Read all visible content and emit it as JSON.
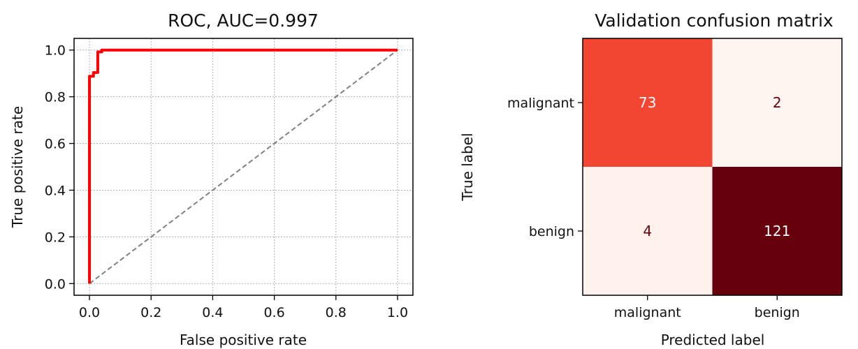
{
  "chart_data": [
    {
      "type": "line",
      "title": "ROC, AUC=0.997",
      "xlabel": "False positive rate",
      "ylabel": "True positive rate",
      "xlim": [
        -0.05,
        1.05
      ],
      "ylim": [
        -0.05,
        1.05
      ],
      "xticks": [
        "0.0",
        "0.2",
        "0.4",
        "0.6",
        "0.8",
        "1.0"
      ],
      "yticks": [
        "0.0",
        "0.2",
        "0.4",
        "0.6",
        "0.8",
        "1.0"
      ],
      "grid": true,
      "series": [
        {
          "x": [
            0.0,
            0.0,
            0.0,
            0.013,
            0.013,
            0.027,
            0.027,
            0.04,
            0.04,
            0.053,
            1.0
          ],
          "y": [
            0.0,
            0.88,
            0.888,
            0.888,
            0.904,
            0.904,
            0.992,
            0.992,
            1.0,
            1.0,
            1.0
          ],
          "color": "#ff0000"
        },
        {
          "x": [
            0.0,
            1.0
          ],
          "y": [
            0.0,
            1.0
          ],
          "color": "#808080",
          "style": "dashed"
        }
      ]
    },
    {
      "type": "heatmap",
      "title": "Validation confusion matrix",
      "xlabel": "Predicted label",
      "ylabel": "True label",
      "xcategories": [
        "malignant",
        "benign"
      ],
      "ycategories": [
        "malignant",
        "benign"
      ],
      "values": [
        [
          73,
          2
        ],
        [
          4,
          121
        ]
      ],
      "colormap": "Reds"
    }
  ]
}
